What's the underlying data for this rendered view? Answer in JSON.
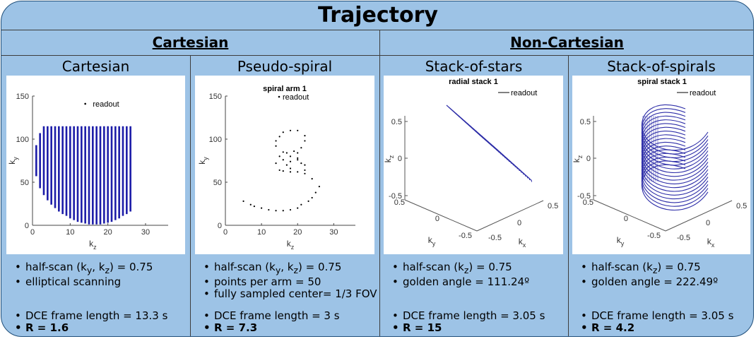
{
  "title": "Trajectory",
  "categories": {
    "left": "Cartesian",
    "right": "Non-Cartesian"
  },
  "panels": [
    {
      "title": "Cartesian",
      "bullets": [
        "half-scan (k",
        "y",
        ", k",
        "z",
        ") = 0.75",
        "elliptical scanning"
      ],
      "frame_length": "DCE frame length = 13.3 s",
      "R": "R = 1.6"
    },
    {
      "title": "Pseudo-spiral",
      "bullets": [
        "half-scan (k",
        "y",
        ", k",
        "z",
        ") = 0.75",
        "points per arm = 50",
        "fully sampled center= 1/3 FOV"
      ],
      "frame_length": "DCE frame length = 3 s",
      "R": "R = 7.3"
    },
    {
      "title": "Stack-of-stars",
      "bullets": [
        "half-scan (k",
        "z",
        ") = 0.75",
        "golden angle = 111.24º"
      ],
      "frame_length": "DCE frame length = 3.05 s",
      "R": "R = 15"
    },
    {
      "title": "Stack-of-spirals",
      "bullets": [
        "half-scan (k",
        "z",
        ") = 0.75",
        "golden angle = 222.49º"
      ],
      "frame_length": "DCE frame length = 3.05 s",
      "R": "R = 4.2"
    }
  ],
  "chart_data": [
    {
      "type": "bar",
      "title": "",
      "legend": "readout",
      "xlabel": "k_z",
      "ylabel": "k_y",
      "xlim": [
        0,
        36
      ],
      "ylim": [
        0,
        150
      ],
      "xticks": [
        "0",
        "10",
        "20",
        "30"
      ],
      "yticks": [
        "0",
        "50",
        "100",
        "150"
      ],
      "x": [
        1,
        2,
        3,
        4,
        5,
        6,
        7,
        8,
        9,
        10,
        11,
        12,
        13,
        14,
        15,
        16,
        17,
        18,
        19,
        20,
        21,
        22,
        23,
        24,
        25,
        26
      ],
      "y_low": [
        57,
        43,
        35,
        29,
        24,
        20,
        16,
        13,
        11,
        8,
        6,
        4,
        3,
        2,
        1,
        1,
        1,
        1,
        2,
        3,
        4,
        6,
        8,
        11,
        13,
        16
      ],
      "y_high": [
        93,
        107,
        115,
        115,
        115,
        115,
        115,
        115,
        115,
        115,
        115,
        115,
        115,
        115,
        115,
        115,
        115,
        115,
        115,
        115,
        115,
        115,
        115,
        115,
        115,
        115
      ]
    },
    {
      "type": "scatter",
      "title": "spiral arm 1",
      "legend": "readout",
      "xlabel": "k_z",
      "ylabel": "k_y",
      "xlim": [
        0,
        36
      ],
      "ylim": [
        0,
        150
      ],
      "xticks": [
        "0",
        "10",
        "20",
        "30"
      ],
      "yticks": [
        "0",
        "50",
        "100",
        "150"
      ],
      "points": [
        [
          5,
          28
        ],
        [
          7,
          24
        ],
        [
          8,
          22
        ],
        [
          10,
          20
        ],
        [
          12,
          18
        ],
        [
          14,
          17
        ],
        [
          16,
          17
        ],
        [
          18,
          18
        ],
        [
          20,
          20
        ],
        [
          21,
          24
        ],
        [
          23,
          28
        ],
        [
          24,
          32
        ],
        [
          25,
          38
        ],
        [
          26,
          45
        ],
        [
          24,
          54
        ],
        [
          22,
          60
        ],
        [
          20,
          62
        ],
        [
          18,
          62
        ],
        [
          16,
          63
        ],
        [
          15,
          64
        ],
        [
          14,
          72
        ],
        [
          15,
          80
        ],
        [
          16,
          85
        ],
        [
          14,
          92
        ],
        [
          14,
          98
        ],
        [
          15,
          103
        ],
        [
          16,
          108
        ],
        [
          18,
          110
        ],
        [
          20,
          110
        ],
        [
          22,
          104
        ],
        [
          22,
          98
        ],
        [
          21,
          90
        ],
        [
          20,
          84
        ],
        [
          20,
          78
        ],
        [
          18,
          74
        ],
        [
          17,
          70
        ],
        [
          18,
          66
        ],
        [
          18,
          80
        ],
        [
          16,
          76
        ],
        [
          17,
          84
        ],
        [
          19,
          86
        ],
        [
          20,
          76
        ],
        [
          21,
          72
        ],
        [
          22,
          70
        ],
        [
          22,
          64
        ]
      ]
    },
    {
      "type": "line",
      "title": "radial stack 1",
      "legend": "readout",
      "xlabel": "k_x",
      "ylabel": "k_y",
      "zlabel": "k_z",
      "ticks": [
        "-0.5",
        "0",
        "0.5"
      ],
      "series_count": 17
    },
    {
      "type": "line",
      "title": "spiral stack 1",
      "legend": "readout",
      "xlabel": "k_x",
      "ylabel": "k_y",
      "zlabel": "k_z",
      "ticks": [
        "-0.5",
        "0",
        "0.5"
      ],
      "series_count": 17
    }
  ]
}
